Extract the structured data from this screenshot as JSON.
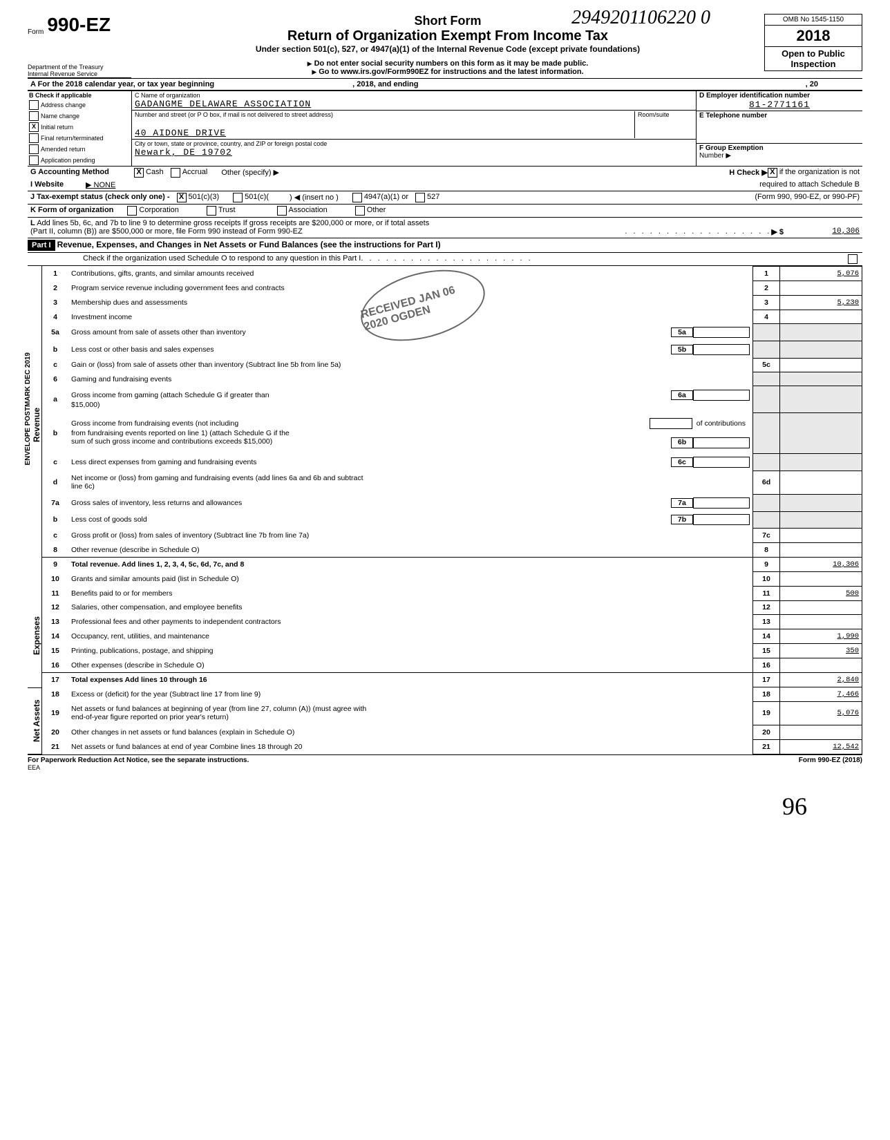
{
  "header": {
    "doc_number": "2949201106220 0",
    "omb": "OMB No 1545-1150",
    "year": "2018",
    "form_number": "990-EZ",
    "form_word": "Form",
    "title": "Short Form",
    "subtitle": "Return of Organization Exempt From Income Tax",
    "under": "Under section 501(c), 527, or 4947(a)(1) of the Internal Revenue Code (except private foundations)",
    "warn": "Do not enter social security numbers on this form as it may be made public.",
    "goto": "Go to www.irs.gov/Form990EZ for instructions and the latest information.",
    "open": "Open to Public",
    "inspection": "Inspection",
    "dept": "Department of the Treasury",
    "irs": "Internal Revenue Service"
  },
  "periodA": {
    "label": "A  For the 2018 calendar year, or tax year beginning",
    "mid": ", 2018, and ending",
    "end": ", 20"
  },
  "sectionB": {
    "title": "B  Check if applicable",
    "items": [
      "Address change",
      "Name change",
      "Initial return",
      "Final return/terminated",
      "Amended return",
      "Application pending"
    ],
    "checked_idx": 2
  },
  "sectionC": {
    "name_label": "C   Name of organization",
    "name": "GADANGME DELAWARE   ASSOCIATION",
    "addr_label": "Number and street (or P O  box, if mail is not delivered to street address)",
    "room": "Room/suite",
    "addr": "40 AIDONE DRIVE",
    "city_label": "City or town, state or province, country, and ZIP or foreign postal code",
    "city": "Newark, DE 19702"
  },
  "sectionD": {
    "label": "D  Employer identification number",
    "val": "81-2771161"
  },
  "sectionE": {
    "label": "E  Telephone number"
  },
  "sectionF": {
    "label": "F  Group Exemption",
    "label2": "Number  ▶"
  },
  "sectionG": {
    "label": "G  Accounting Method",
    "cash": "Cash",
    "accrual": "Accrual",
    "other": "Other (specify) ▶"
  },
  "sectionH": {
    "label": "H  Check ▶",
    "text": "if the organization is not",
    "text2": "required to attach Schedule B",
    "text3": "(Form 990, 990-EZ, or 990-PF)"
  },
  "sectionI": {
    "label": "I   Website",
    "val": "▶ NONE"
  },
  "sectionJ": {
    "label": "J   Tax-exempt status (check only one) -",
    "a": "501(c)(3)",
    "b": "501(c)(",
    "c": ") ◀ (insert no )",
    "d": "4947(a)(1) or",
    "e": "527"
  },
  "sectionK": {
    "label": "K  Form of organization",
    "a": "Corporation",
    "b": "Trust",
    "c": "Association",
    "d": "Other"
  },
  "sectionL": {
    "text": "Add lines 5b, 6c, and 7b to line 9 to determine gross receipts  If gross receipts are $200,000 or more, or if total assets",
    "text2": "(Part II, column (B)) are $500,000 or more, file Form 990 instead of Form 990-EZ",
    "arrow": "▶ $",
    "val": "10,306"
  },
  "part1": {
    "label": "Part I",
    "title": "Revenue, Expenses, and Changes in Net Assets or Fund Balances (see the instructions for Part I)",
    "check": "Check if the organization used Schedule O to respond to any question in this Part I"
  },
  "vlabels": {
    "revenue": "Revenue",
    "expenses": "Expenses",
    "netassets": "Net Assets"
  },
  "lines": [
    {
      "n": "1",
      "d": "Contributions, gifts, grants, and similar amounts received",
      "a": "1",
      "v": "5,076"
    },
    {
      "n": "2",
      "d": "Program service revenue including government fees and contracts",
      "a": "2",
      "v": ""
    },
    {
      "n": "3",
      "d": "Membership dues and assessments",
      "a": "3",
      "v": "5,230"
    },
    {
      "n": "4",
      "d": "Investment income",
      "a": "4",
      "v": ""
    },
    {
      "n": "5a",
      "d": "Gross amount from sale of assets other than inventory",
      "box": "5a"
    },
    {
      "n": "b",
      "d": "Less  cost or other basis and sales expenses",
      "box": "5b"
    },
    {
      "n": "c",
      "d": "Gain or (loss) from sale of assets other than inventory (Subtract line 5b from line 5a)",
      "a": "5c",
      "v": ""
    },
    {
      "n": "6",
      "d": "Gaming and fundraising events"
    },
    {
      "n": "a",
      "d": "Gross income from gaming (attach Schedule G if greater than",
      "d2": "$15,000)",
      "box": "6a"
    },
    {
      "n": "b",
      "d": "Gross income from fundraising events (not including",
      "d2": "from fundraising events reported on line 1) (attach Schedule G if the",
      "d3": "sum of such gross income and contributions exceeds $15,000)",
      "extra": "of contributions",
      "box": "6b"
    },
    {
      "n": "c",
      "d": "Less  direct expenses from gaming and fundraising events",
      "box": "6c"
    },
    {
      "n": "d",
      "d": "Net income or (loss) from gaming and fundraising events (add lines 6a and 6b and subtract",
      "d2": "line 6c)",
      "a": "6d",
      "v": ""
    },
    {
      "n": "7a",
      "d": "Gross sales of inventory, less returns and allowances",
      "box": "7a"
    },
    {
      "n": "b",
      "d": "Less  cost of goods sold",
      "box": "7b"
    },
    {
      "n": "c",
      "d": "Gross profit or (loss) from sales of inventory (Subtract line 7b from line 7a)",
      "a": "7c",
      "v": ""
    },
    {
      "n": "8",
      "d": "Other revenue (describe in Schedule O)",
      "a": "8",
      "v": ""
    },
    {
      "n": "9",
      "d": "Total revenue.  Add lines 1, 2, 3, 4, 5c, 6d, 7c, and 8",
      "a": "9",
      "v": "10,306",
      "bold": true
    },
    {
      "n": "10",
      "d": "Grants and similar amounts paid (list in Schedule O)",
      "a": "10",
      "v": ""
    },
    {
      "n": "11",
      "d": "Benefits paid to or for members",
      "a": "11",
      "v": "500"
    },
    {
      "n": "12",
      "d": "Salaries, other compensation, and employee benefits",
      "a": "12",
      "v": ""
    },
    {
      "n": "13",
      "d": "Professional fees and other payments to independent contractors",
      "a": "13",
      "v": ""
    },
    {
      "n": "14",
      "d": "Occupancy, rent, utilities, and maintenance",
      "a": "14",
      "v": "1,990"
    },
    {
      "n": "15",
      "d": "Printing, publications, postage, and shipping",
      "a": "15",
      "v": "350"
    },
    {
      "n": "16",
      "d": "Other expenses (describe in Schedule O)",
      "a": "16",
      "v": ""
    },
    {
      "n": "17",
      "d": "Total expenses   Add lines 10 through 16",
      "a": "17",
      "v": "2,840",
      "bold": true
    },
    {
      "n": "18",
      "d": "Excess or (deficit) for the year (Subtract line 17 from line 9)",
      "a": "18",
      "v": "7,466"
    },
    {
      "n": "19",
      "d": "Net assets or fund balances at beginning of year (from line 27, column (A)) (must agree with",
      "d2": "end-of-year figure reported on prior year's return)",
      "a": "19",
      "v": "5,076"
    },
    {
      "n": "20",
      "d": "Other changes in net assets or fund balances (explain in Schedule O)",
      "a": "20",
      "v": ""
    },
    {
      "n": "21",
      "d": "Net assets or fund balances at end of year  Combine lines 18 through 20",
      "a": "21",
      "v": "12,542"
    }
  ],
  "footer": {
    "left": "For Paperwork Reduction Act Notice, see the separate instructions.",
    "eea": "EEA",
    "right": "Form 990-EZ (2018)"
  },
  "stamp": "RECEIVED  JAN 06 2020  OGDEN",
  "side_stamp": "ENVELOPE   POSTMARK   DEC   2019",
  "signature": "96"
}
